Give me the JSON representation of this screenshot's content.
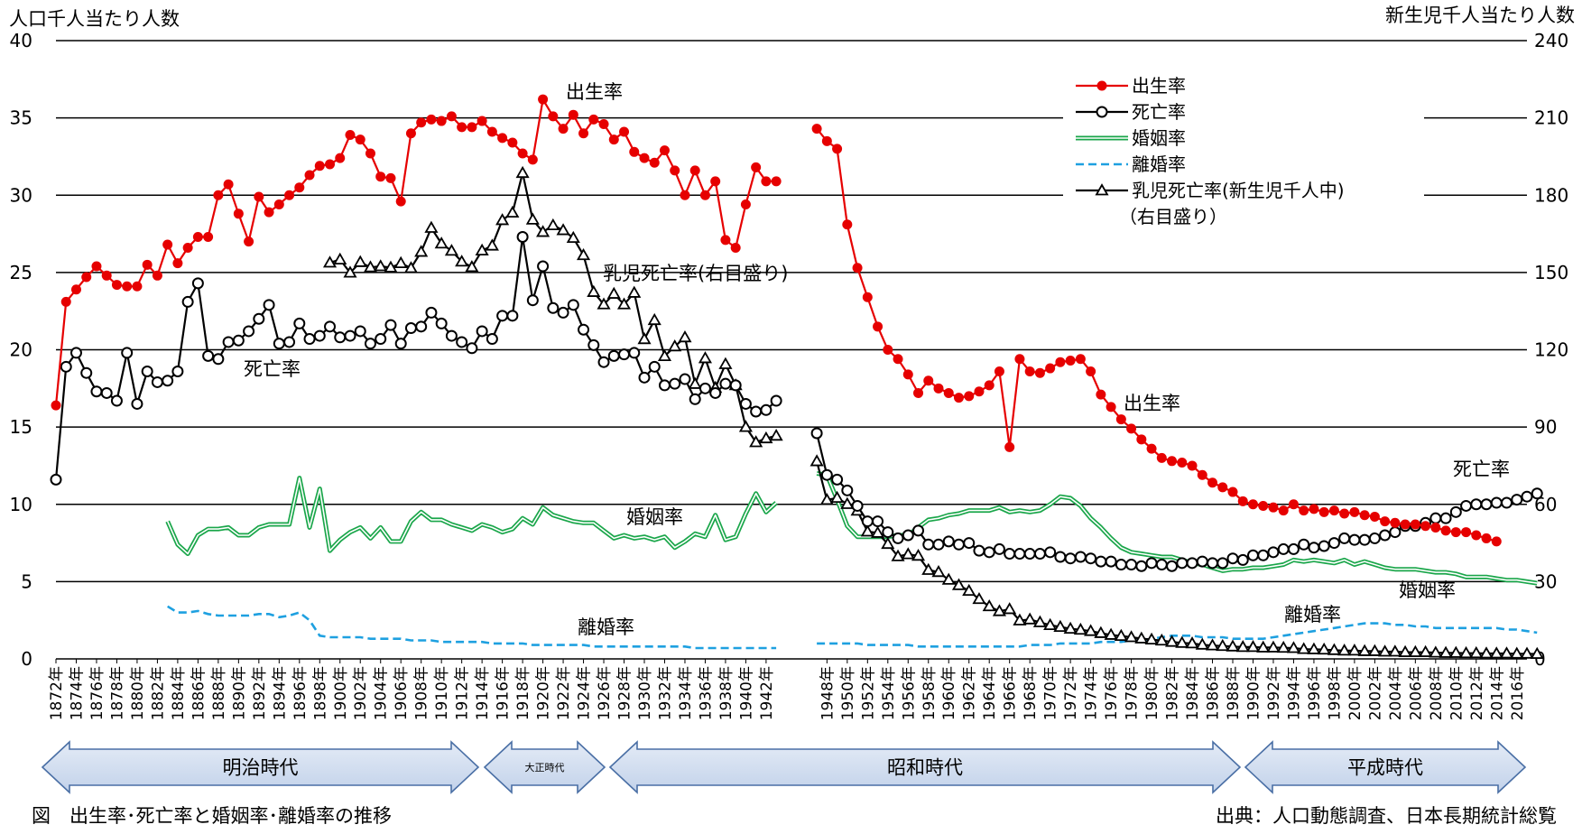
{
  "chart_data": {
    "type": "line",
    "y_left_label": "人口千人当たり人数",
    "y_right_label": "新生児千人当たり人数",
    "ylim_left": [
      0,
      40
    ],
    "ylim_right": [
      0,
      240
    ],
    "y_left_ticks": [
      "0",
      "5",
      "10",
      "15",
      "20",
      "25",
      "30",
      "35",
      "40"
    ],
    "y_right_ticks": [
      "0",
      "30",
      "60",
      "90",
      "120",
      "150",
      "180",
      "210",
      "240"
    ],
    "x_start_year": 1872,
    "x_end_year": 2017,
    "x_tick_labels": [
      "1872年",
      "1874年",
      "1876年",
      "1878年",
      "1880年",
      "1882年",
      "1884年",
      "1886年",
      "1888年",
      "1890年",
      "1892年",
      "1894年",
      "1896年",
      "1898年",
      "1900年",
      "1902年",
      "1904年",
      "1906年",
      "1908年",
      "1910年",
      "1912年",
      "1914年",
      "1916年",
      "1918年",
      "1920年",
      "1922年",
      "1924年",
      "1926年",
      "1928年",
      "1930年",
      "1932年",
      "1934年",
      "1936年",
      "1938年",
      "1940年",
      "1942年",
      "1948年",
      "1950年",
      "1952年",
      "1954年",
      "1956年",
      "1958年",
      "1960年",
      "1962年",
      "1964年",
      "1966年",
      "1968年",
      "1970年",
      "1972年",
      "1974年",
      "1976年",
      "1978年",
      "1980年",
      "1982年",
      "1984年",
      "1986年",
      "1988年",
      "1990年",
      "1992年",
      "1994年",
      "1996年",
      "1998年",
      "2000年",
      "2002年",
      "2004年",
      "2006年",
      "2008年",
      "2010年",
      "2012年",
      "2014年",
      "2016年"
    ],
    "grid": true,
    "legend_position": "top-right",
    "legend": [
      {
        "key": "birth",
        "label": "出生率"
      },
      {
        "key": "death",
        "label": "死亡率"
      },
      {
        "key": "marriage",
        "label": "婚姻率"
      },
      {
        "key": "divorce",
        "label": "離婚率"
      },
      {
        "key": "infant",
        "label": "乳児死亡率(新生児千人中)"
      }
    ],
    "legend_note": "（右目盛り）",
    "annotations": [
      {
        "key": "birth_1",
        "text": "出生率"
      },
      {
        "key": "birth_2",
        "text": "出生率"
      },
      {
        "key": "death_1",
        "text": "死亡率"
      },
      {
        "key": "death_2",
        "text": "死亡率"
      },
      {
        "key": "marriage_1",
        "text": "婚姻率"
      },
      {
        "key": "marriage_2",
        "text": "婚姻率"
      },
      {
        "key": "divorce_1",
        "text": "離婚率"
      },
      {
        "key": "divorce_2",
        "text": "離婚率"
      },
      {
        "key": "infant_1",
        "text": "乳児死亡率(右目盛り)"
      }
    ],
    "series": [
      {
        "key": "birth",
        "name": "出生率",
        "color": "#e60000",
        "axis": "left",
        "marker": "filled-circle",
        "segments": [
          {
            "start": 1872,
            "values": [
              16.4,
              23.1,
              23.9,
              24.7,
              25.4,
              24.8,
              24.2,
              24.1,
              24.1,
              25.5,
              24.8,
              26.8,
              25.6,
              26.6,
              27.3,
              27.3,
              30.0,
              30.7,
              28.8,
              27.0,
              29.9,
              28.9,
              29.4,
              30.0,
              30.5,
              31.3,
              31.9,
              32.0,
              32.4,
              33.9,
              33.6,
              32.7,
              31.2,
              31.1,
              29.6,
              34.0,
              34.7,
              34.9,
              34.8,
              35.1,
              34.4,
              34.4,
              34.8,
              34.1,
              33.7,
              33.4,
              32.7,
              32.3,
              36.2,
              35.1,
              34.3,
              35.2,
              34.0,
              34.9,
              34.6,
              33.6,
              34.1,
              32.8,
              32.4,
              32.1,
              32.9,
              31.6,
              30.0,
              31.6,
              30.0,
              30.9,
              27.1,
              26.6,
              29.4,
              31.8,
              30.9,
              30.9
            ]
          },
          {
            "start": 1947,
            "values": [
              34.3,
              33.5,
              33.0,
              28.1,
              25.3,
              23.4,
              21.5,
              20.0,
              19.4,
              18.4,
              17.2,
              18.0,
              17.5,
              17.2,
              16.9,
              17.0,
              17.3,
              17.7,
              18.6,
              13.7,
              19.4,
              18.6,
              18.5,
              18.8,
              19.2,
              19.3,
              19.4,
              18.6,
              17.1,
              16.3,
              15.5,
              14.9,
              14.2,
              13.6,
              13.0,
              12.8,
              12.7,
              12.5,
              11.9,
              11.4,
              11.1,
              10.8,
              10.2,
              10.0,
              9.9,
              9.8,
              9.6,
              10.0,
              9.6,
              9.7,
              9.5,
              9.6,
              9.4,
              9.5,
              9.3,
              9.2,
              8.9,
              8.8,
              8.7,
              8.7,
              8.6,
              8.5,
              8.3,
              8.2,
              8.2,
              8.0,
              7.8,
              7.6
            ]
          }
        ]
      },
      {
        "key": "death",
        "name": "死亡率",
        "color": "#000000",
        "axis": "left",
        "marker": "open-circle",
        "segments": [
          {
            "start": 1872,
            "values": [
              11.6,
              18.9,
              19.8,
              18.5,
              17.3,
              17.2,
              16.7,
              19.8,
              16.5,
              18.6,
              17.9,
              18.0,
              18.6,
              23.1,
              24.3,
              19.6,
              19.4,
              20.5,
              20.6,
              21.2,
              22.0,
              22.9,
              20.4,
              20.5,
              21.7,
              20.7,
              20.9,
              21.5,
              20.8,
              20.9,
              21.2,
              20.4,
              20.7,
              21.6,
              20.4,
              21.4,
              21.5,
              22.4,
              21.7,
              20.9,
              20.5,
              20.1,
              21.2,
              20.7,
              22.2,
              22.2,
              27.3,
              23.2,
              25.4,
              22.7,
              22.4,
              22.9,
              21.3,
              20.3,
              19.2,
              19.6,
              19.7,
              19.8,
              18.2,
              18.9,
              17.7,
              17.8,
              18.1,
              16.8,
              17.5,
              17.2,
              17.8,
              17.7,
              16.5,
              16.0,
              16.1,
              16.7
            ]
          },
          {
            "start": 1947,
            "values": [
              14.6,
              11.9,
              11.6,
              10.9,
              9.9,
              8.9,
              8.9,
              8.2,
              7.8,
              8.0,
              8.3,
              7.4,
              7.4,
              7.6,
              7.4,
              7.5,
              7.0,
              6.9,
              7.1,
              6.8,
              6.8,
              6.8,
              6.8,
              6.9,
              6.6,
              6.5,
              6.6,
              6.5,
              6.3,
              6.3,
              6.1,
              6.1,
              6.0,
              6.2,
              6.1,
              6.0,
              6.2,
              6.2,
              6.3,
              6.2,
              6.2,
              6.5,
              6.4,
              6.7,
              6.7,
              6.9,
              7.1,
              7.1,
              7.4,
              7.2,
              7.3,
              7.5,
              7.8,
              7.7,
              7.7,
              7.8,
              8.0,
              8.2,
              8.6,
              8.6,
              8.8,
              9.1,
              9.1,
              9.5,
              9.9,
              10.0,
              10.0,
              10.1,
              10.1,
              10.3,
              10.5,
              10.7
            ]
          }
        ]
      },
      {
        "key": "marriage",
        "name": "婚姻率",
        "color": "#1aa64a",
        "axis": "left",
        "marker": "none",
        "segments": [
          {
            "start": 1883,
            "values": [
              8.9,
              7.4,
              6.8,
              8.0,
              8.4,
              8.4,
              8.5,
              8.0,
              8.0,
              8.5,
              8.7,
              8.7,
              8.7,
              11.7,
              8.5,
              11.0,
              7.0,
              7.7,
              8.2,
              8.5,
              7.8,
              8.5,
              7.6,
              7.6,
              8.9,
              9.5,
              9.0,
              9.0,
              8.7,
              8.5,
              8.3,
              8.7,
              8.5,
              8.2,
              8.4,
              9.1,
              8.7,
              9.8,
              9.3,
              9.1,
              8.9,
              8.8,
              8.8,
              8.3,
              7.8,
              8.0,
              7.8,
              7.9,
              7.7,
              7.9,
              7.2,
              7.6,
              8.1,
              7.9,
              9.3,
              7.7,
              7.9,
              9.4,
              10.7,
              9.5,
              10.1
            ]
          },
          {
            "start": 1947,
            "values": [
              12.0,
              11.9,
              10.3,
              8.6,
              7.9,
              7.9,
              7.9,
              7.9,
              8.0,
              8.0,
              8.5,
              9.0,
              9.1,
              9.3,
              9.4,
              9.6,
              9.6,
              9.6,
              9.8,
              9.5,
              9.6,
              9.5,
              9.6,
              10.0,
              10.5,
              10.4,
              9.9,
              9.1,
              8.5,
              7.8,
              7.2,
              6.9,
              6.8,
              6.7,
              6.6,
              6.6,
              6.4,
              6.2,
              6.1,
              5.9,
              5.7,
              5.8,
              5.8,
              5.9,
              5.9,
              6.0,
              6.1,
              6.4,
              6.3,
              6.4,
              6.3,
              6.2,
              6.4,
              6.1,
              6.3,
              6.1,
              5.9,
              5.8,
              5.8,
              5.8,
              5.7,
              5.6,
              5.6,
              5.5,
              5.3,
              5.3,
              5.3,
              5.2,
              5.1,
              5.1,
              5.0,
              4.9
            ]
          }
        ]
      },
      {
        "key": "divorce",
        "name": "離婚率",
        "color": "#1ea0e0",
        "axis": "left",
        "marker": "none",
        "segments": [
          {
            "start": 1883,
            "values": [
              3.4,
              3.0,
              3.0,
              3.1,
              2.9,
              2.8,
              2.8,
              2.8,
              2.8,
              2.9,
              2.9,
              2.7,
              2.8,
              3.0,
              2.5,
              1.5,
              1.4,
              1.4,
              1.4,
              1.4,
              1.3,
              1.3,
              1.3,
              1.3,
              1.2,
              1.2,
              1.2,
              1.1,
              1.1,
              1.1,
              1.1,
              1.1,
              1.0,
              1.0,
              1.0,
              1.0,
              0.9,
              0.9,
              0.9,
              0.9,
              0.9,
              0.9,
              0.8,
              0.8,
              0.8,
              0.8,
              0.8,
              0.8,
              0.8,
              0.8,
              0.8,
              0.8,
              0.7,
              0.7,
              0.7,
              0.7,
              0.7,
              0.7,
              0.7,
              0.7,
              0.7
            ]
          },
          {
            "start": 1947,
            "values": [
              1.0,
              1.0,
              1.0,
              1.0,
              1.0,
              0.9,
              0.9,
              0.9,
              0.9,
              0.9,
              0.8,
              0.8,
              0.8,
              0.8,
              0.8,
              0.8,
              0.8,
              0.8,
              0.8,
              0.8,
              0.8,
              0.9,
              0.9,
              0.9,
              1.0,
              1.0,
              1.0,
              1.0,
              1.1,
              1.1,
              1.1,
              1.2,
              1.2,
              1.3,
              1.4,
              1.5,
              1.5,
              1.5,
              1.4,
              1.4,
              1.4,
              1.3,
              1.3,
              1.3,
              1.3,
              1.4,
              1.5,
              1.6,
              1.7,
              1.8,
              1.9,
              2.0,
              2.1,
              2.2,
              2.3,
              2.3,
              2.3,
              2.2,
              2.2,
              2.1,
              2.1,
              2.0,
              2.0,
              2.0,
              2.0,
              2.0,
              2.0,
              2.0,
              1.9,
              1.9,
              1.8,
              1.7
            ]
          }
        ]
      },
      {
        "key": "infant",
        "name": "乳児死亡率(新生児千人中)",
        "color": "#000000",
        "axis": "right",
        "marker": "open-triangle",
        "segments": [
          {
            "start": 1899,
            "values": [
              153.8,
              155.0,
              149.9,
              154.0,
              152.0,
              152.4,
              151.9,
              153.6,
              151.7,
              158.0,
              167.3,
              161.2,
              158.4,
              154.2,
              152.1,
              158.5,
              160.4,
              170.3,
              173.2,
              188.6,
              170.5,
              165.7,
              168.3,
              166.4,
              163.4,
              156.7,
              142.4,
              137.6,
              141.7,
              137.6,
              142.1,
              124.1,
              131.5,
              117.5,
              121.3,
              124.8,
              106.7,
              116.7,
              105.2,
              114.4,
              106.2,
              90.0,
              84.1,
              85.6,
              86.6
            ]
          },
          {
            "start": 1947,
            "values": [
              76.7,
              61.7,
              62.5,
              60.1,
              57.5,
              49.4,
              48.9,
              44.6,
              39.8,
              40.6,
              40.0,
              34.5,
              33.7,
              30.7,
              28.6,
              26.4,
              23.2,
              20.4,
              18.5,
              19.3,
              14.9,
              15.3,
              14.2,
              13.1,
              12.4,
              11.7,
              11.3,
              10.8,
              10.0,
              9.3,
              8.9,
              8.4,
              7.9,
              7.5,
              7.1,
              6.6,
              6.2,
              6.0,
              5.5,
              5.2,
              5.0,
              4.8,
              4.6,
              4.6,
              4.4,
              4.4,
              4.3,
              4.2,
              3.8,
              3.7,
              3.6,
              3.4,
              3.2,
              3.2,
              3.0,
              3.0,
              2.8,
              2.8,
              2.6,
              2.6,
              2.6,
              2.4,
              2.3,
              2.3,
              2.2,
              2.2,
              2.1,
              2.1,
              2.1,
              2.0,
              2.0,
              1.9
            ]
          }
        ]
      }
    ]
  },
  "eras": [
    {
      "key": "meiji",
      "label": "明治時代"
    },
    {
      "key": "taisho",
      "label": "大正時代"
    },
    {
      "key": "showa",
      "label": "昭和時代"
    },
    {
      "key": "heisei",
      "label": "平成時代"
    }
  ],
  "caption": "図　出生率･死亡率と婚姻率･離婚率の推移",
  "source": "出典：人口動態調査、日本長期統計総覧"
}
